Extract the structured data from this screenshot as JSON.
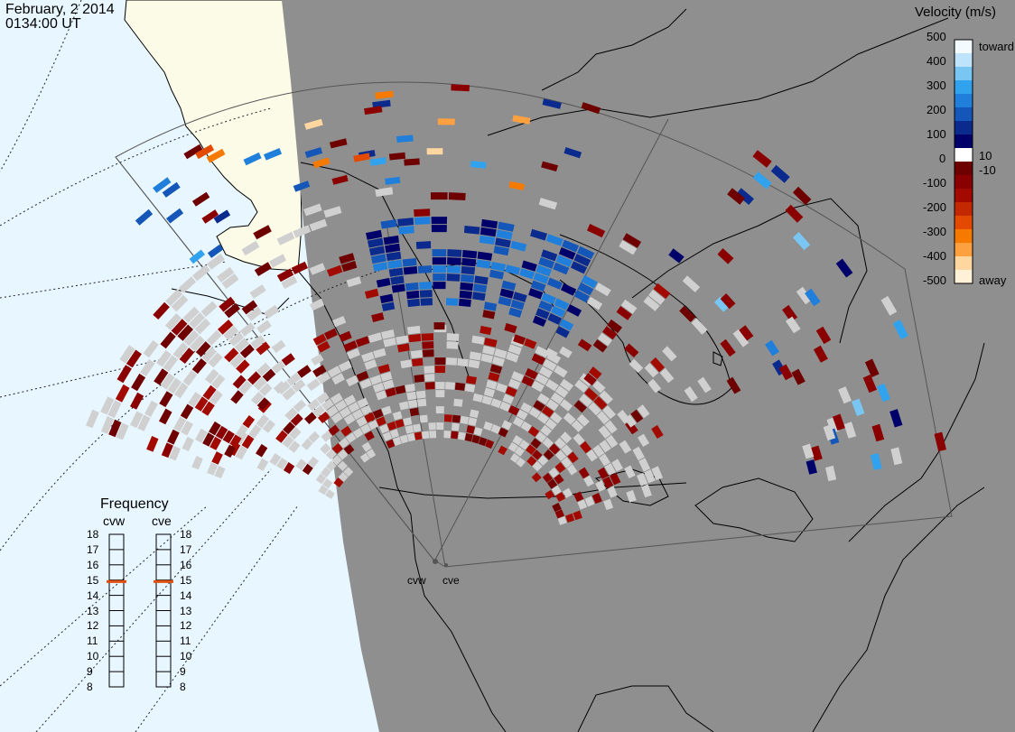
{
  "header": {
    "date": "February, 2 2014",
    "time": "0134:00 UT"
  },
  "colorbar": {
    "title": "Velocity (m/s)",
    "ticks": [
      "500",
      "400",
      "300",
      "200",
      "100",
      "0",
      "-100",
      "-200",
      "-300",
      "-400",
      "-500"
    ],
    "label_toward": "toward",
    "label_away": "away",
    "label_pos": "10",
    "label_neg": "-10",
    "colors": [
      "#f4fbff",
      "#bfe3fb",
      "#7ac6f3",
      "#31a2ee",
      "#1f7fdb",
      "#1457b8",
      "#0a2a8e",
      "#00006b",
      "#ffffff",
      "#6e0000",
      "#8a0000",
      "#a20a00",
      "#c32800",
      "#e34a00",
      "#f77a00",
      "#fca040",
      "#fed6a0",
      "#fff0d8"
    ]
  },
  "frequency": {
    "title": "Frequency",
    "sites": [
      {
        "name": "cvw",
        "value_mhz": 14.9
      },
      {
        "name": "cve",
        "value_mhz": 14.9
      }
    ],
    "scale": [
      "18",
      "17",
      "16",
      "15",
      "14",
      "13",
      "12",
      "11",
      "10",
      "9",
      "8"
    ],
    "marker_color": "#e05010"
  },
  "radar_sites": [
    {
      "name": "cvw"
    },
    {
      "name": "cve"
    }
  ],
  "map_colors": {
    "ocean": "#e8f6ff",
    "land_lit": "#fcfbe8",
    "night": "#8f8f8f",
    "no_velocity": "#d0d0d0"
  }
}
